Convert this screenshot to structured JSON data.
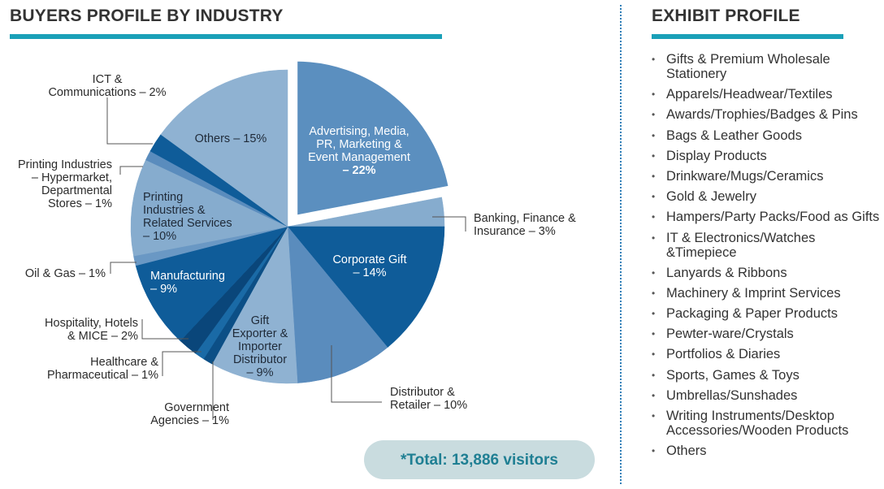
{
  "left_title": "BUYERS PROFILE BY INDUSTRY",
  "right_title": "EXHIBIT PROFILE",
  "total": "*Total: 13,886 visitors",
  "colors": {
    "accent_bar": "#1aa0b8",
    "divider": "#2e7fb8",
    "pill_bg": "#c9dcdf",
    "pill_text": "#1f7f93"
  },
  "chart_data": {
    "type": "pie",
    "title": "BUYERS PROFILE BY INDUSTRY",
    "slices": [
      {
        "label": "Advertising, Media, PR, Marketing & Event Management",
        "value": 22,
        "text": "Advertising, Media, PR, Marketing & Event Management – 22%",
        "exploded": true,
        "color": "#5b8fbf"
      },
      {
        "label": "Banking, Finance & Insurance",
        "value": 3,
        "text": "Banking, Finance & Insurance – 3%",
        "color": "#86acce"
      },
      {
        "label": "Corporate Gift",
        "value": 14,
        "text": "Corporate Gift – 14%",
        "color": "#0f5c99"
      },
      {
        "label": "Distributor & Retailer",
        "value": 10,
        "text": "Distributor & Retailer – 10%",
        "color": "#5a8cbd"
      },
      {
        "label": "Gift Exporter & Importer Distributor",
        "value": 9,
        "text": "Gift Exporter & Importer Distributor – 9%",
        "color": "#8fb2d2"
      },
      {
        "label": "Government Agencies",
        "value": 1,
        "text": "Government Agencies – 1%",
        "color": "#0c4f86"
      },
      {
        "label": "Healthcare & Pharmaceutical",
        "value": 1,
        "text": "Healthcare & Pharmaceutical – 1%",
        "color": "#1a6aa6"
      },
      {
        "label": "Hospitality, Hotels & MICE",
        "value": 2,
        "text": "Hospitality, Hotels & MICE – 2%",
        "color": "#0a467a"
      },
      {
        "label": "Manufacturing",
        "value": 9,
        "text": "Manufacturing – 9%",
        "color": "#0f5c99"
      },
      {
        "label": "Oil & Gas",
        "value": 1,
        "text": "Oil & Gas – 1%",
        "color": "#6a98c4"
      },
      {
        "label": "Printing Industries & Related Services",
        "value": 10,
        "text": "Printing Industries & Related Services – 10%",
        "color": "#86acce"
      },
      {
        "label": "Printing Industries – Hypermarket, Departmental Stores",
        "value": 1,
        "text": "Printing Industries – Hypermarket, Departmental Stores – 1%",
        "color": "#5a8cbd"
      },
      {
        "label": "ICT & Communications",
        "value": 2,
        "text": "ICT & Communications – 2%",
        "color": "#0f5c99"
      },
      {
        "label": "Others",
        "value": 15,
        "text": "Others – 15%",
        "color": "#8fb2d2"
      }
    ]
  },
  "exhibit_profile": [
    "Gifts & Premium Wholesale Stationery",
    "Apparels/Headwear/Textiles",
    "Awards/Trophies/Badges & Pins",
    "Bags & Leather Goods",
    "Display Products",
    "Drinkware/Mugs/Ceramics",
    "Gold & Jewelry",
    "Hampers/Party Packs/Food as Gifts",
    "IT & Electronics/Watches &Timepiece",
    "Lanyards & Ribbons",
    "Machinery & Imprint Services",
    "Packaging & Paper Products",
    "Pewter-ware/Crystals",
    "Portfolios & Diaries",
    "Sports, Games & Toys",
    "Umbrellas/Sunshades",
    "Writing Instruments/Desktop Accessories/Wooden Products",
    "Others"
  ]
}
